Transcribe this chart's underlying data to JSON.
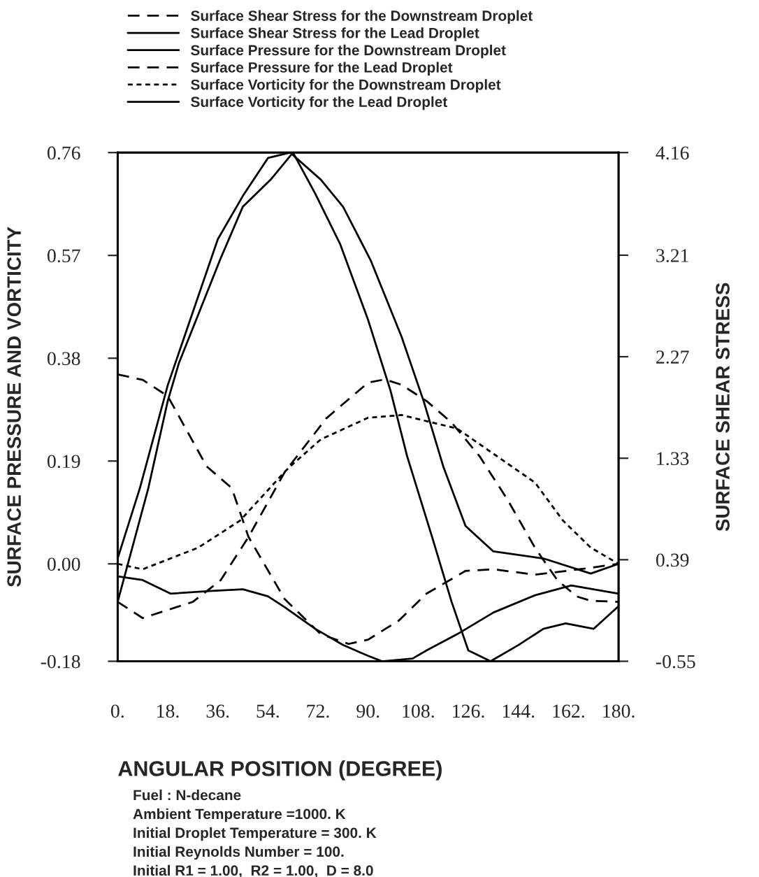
{
  "chart_data": {
    "type": "line",
    "xlabel": "ANGULAR POSITION (DEGREE)",
    "ylabel": "SURFACE PRESSURE AND VORTICITY",
    "y2label": "SURFACE SHEAR STRESS",
    "xlim": [
      0,
      180
    ],
    "xticks": [
      {
        "value": 0,
        "label": "0."
      },
      {
        "value": 18,
        "label": "18."
      },
      {
        "value": 36,
        "label": "36."
      },
      {
        "value": 54,
        "label": "54."
      },
      {
        "value": 72,
        "label": "72."
      },
      {
        "value": 90,
        "label": "90."
      },
      {
        "value": 108,
        "label": "108."
      },
      {
        "value": 126,
        "label": "126."
      },
      {
        "value": 144,
        "label": "144."
      },
      {
        "value": 162,
        "label": "162."
      },
      {
        "value": 180,
        "label": "180."
      }
    ],
    "ylim": [
      -0.18,
      0.76
    ],
    "yticks": [
      {
        "value": -0.18,
        "label": "-0.18"
      },
      {
        "value": 0.0,
        "label": "0.00"
      },
      {
        "value": 0.19,
        "label": "0.19"
      },
      {
        "value": 0.38,
        "label": "0.38"
      },
      {
        "value": 0.57,
        "label": "0.57"
      },
      {
        "value": 0.76,
        "label": "0.76"
      }
    ],
    "y2lim": [
      -0.55,
      4.16
    ],
    "y2ticks": [
      {
        "value": -0.55,
        "label": "-0.55"
      },
      {
        "value": 0.39,
        "label": "0.39"
      },
      {
        "value": 1.33,
        "label": "1.33"
      },
      {
        "value": 2.27,
        "label": "2.27"
      },
      {
        "value": 3.21,
        "label": "3.21"
      },
      {
        "value": 4.16,
        "label": "4.16"
      }
    ],
    "legend": "top",
    "grid": false,
    "marker": "none",
    "series": [
      {
        "name": "Surface Shear Stress for the Downstream Droplet",
        "color": "#000000",
        "line_style": "dashed",
        "axis": "y2",
        "x": [
          0,
          9,
          27,
          37,
          47,
          60,
          75,
          90,
          96,
          102,
          111,
          120,
          130,
          140,
          150,
          158,
          165,
          170,
          180
        ],
        "values": [
          0.0,
          -0.15,
          0.0,
          0.2,
          0.6,
          1.2,
          1.7,
          2.03,
          2.06,
          2.01,
          1.86,
          1.66,
          1.35,
          0.95,
          0.5,
          0.2,
          0.05,
          0.01,
          0.0
        ]
      },
      {
        "name": "Surface Shear Stress for the Lead Droplet",
        "color": "#000000",
        "line_style": "solid",
        "axis": "y2",
        "x": [
          0,
          11,
          18,
          22,
          37,
          45,
          55,
          63,
          71,
          80,
          90,
          98,
          104,
          113,
          120,
          126,
          134,
          144,
          153,
          161,
          171,
          180
        ],
        "values": [
          0.0,
          1.05,
          1.86,
          2.21,
          3.18,
          3.66,
          3.91,
          4.16,
          3.78,
          3.31,
          2.61,
          1.96,
          1.35,
          0.6,
          0.0,
          -0.45,
          -0.55,
          -0.4,
          -0.25,
          -0.2,
          -0.25,
          -0.04
        ]
      },
      {
        "name": "Surface Pressure for the Downstream Droplet",
        "color": "#000000",
        "line_style": "solid",
        "x": [
          0,
          9,
          19,
          34,
          45,
          54,
          60,
          71,
          81,
          90,
          95,
          106,
          111,
          122,
          135,
          150,
          163,
          180
        ],
        "values": [
          -0.023,
          -0.03,
          -0.055,
          -0.05,
          -0.047,
          -0.06,
          -0.08,
          -0.12,
          -0.15,
          -0.17,
          -0.18,
          -0.175,
          -0.16,
          -0.13,
          -0.09,
          -0.058,
          -0.04,
          -0.055
        ]
      },
      {
        "name": "Surface Pressure for the Lead Droplet",
        "color": "#000000",
        "line_style": "dashed",
        "x": [
          0,
          9,
          18,
          32,
          41,
          47,
          60,
          73,
          83,
          90,
          101,
          111,
          125,
          135,
          150,
          166,
          180
        ],
        "values": [
          0.35,
          0.34,
          0.31,
          0.18,
          0.14,
          0.05,
          -0.065,
          -0.13,
          -0.148,
          -0.14,
          -0.105,
          -0.055,
          -0.013,
          -0.01,
          -0.02,
          -0.01,
          0.0
        ]
      },
      {
        "name": "Surface Vorticity for the Downstream Droplet",
        "color": "#000000",
        "line_style": "dotted",
        "x": [
          0,
          9,
          29,
          44,
          60,
          62,
          73,
          90,
          102,
          122,
          150,
          160,
          170,
          180
        ],
        "values": [
          0.0,
          -0.01,
          0.03,
          0.08,
          0.17,
          0.18,
          0.23,
          0.27,
          0.275,
          0.25,
          0.15,
          0.08,
          0.03,
          0.0
        ]
      },
      {
        "name": "Surface Vorticity for the Lead Droplet",
        "color": "#000000",
        "line_style": "solid",
        "x": [
          0,
          8,
          18,
          36,
          45,
          54,
          62,
          73,
          81,
          91,
          102,
          110,
          117,
          125,
          135,
          153,
          170,
          180
        ],
        "values": [
          0.01,
          0.14,
          0.33,
          0.6,
          0.68,
          0.75,
          0.76,
          0.71,
          0.66,
          0.56,
          0.42,
          0.3,
          0.18,
          0.07,
          0.023,
          0.01,
          -0.018,
          0.0
        ]
      }
    ],
    "annotations": [
      "Fuel : N-decane",
      "Ambient Temperature =1000. K",
      "Initial Droplet Temperature = 300. K",
      "Initial Reynolds Number = 100.",
      "Initial R1 = 1.00,  R2 = 1.00,  D = 8.0"
    ]
  }
}
